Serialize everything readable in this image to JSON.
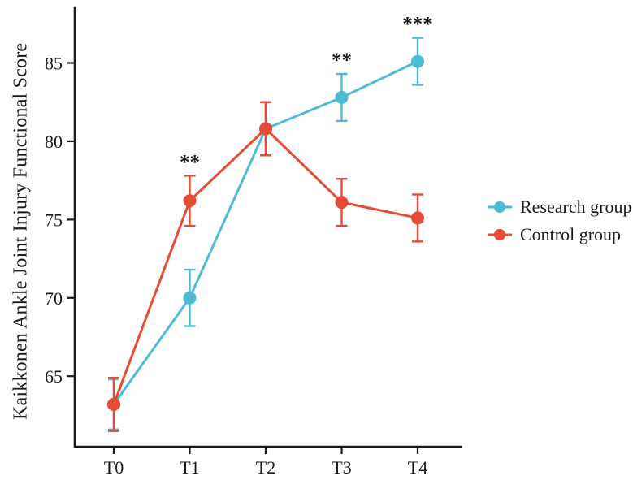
{
  "chart_data": {
    "type": "line",
    "categories": [
      "T0",
      "T1",
      "T2",
      "T3",
      "T4"
    ],
    "ylabel": "Kaikkonen Ankle Joint Injury Functional Score",
    "yticks": [
      65,
      70,
      75,
      80,
      85
    ],
    "ylim": [
      60.5,
      88.5
    ],
    "grid": false,
    "legend_position": "right",
    "axis_color": "#1a1a1a",
    "series": [
      {
        "name": "Research group",
        "color": "#4DBBD5",
        "values": [
          63.2,
          70.0,
          80.8,
          82.8,
          85.1
        ],
        "errors": [
          1.6,
          1.8,
          1.7,
          1.5,
          1.5
        ]
      },
      {
        "name": "Control group",
        "color": "#E64B35",
        "values": [
          63.2,
          76.2,
          80.8,
          76.1,
          75.1
        ],
        "errors": [
          1.7,
          1.6,
          1.7,
          1.5,
          1.5
        ]
      }
    ],
    "annotations": [
      {
        "category": "T1",
        "series": "Control group",
        "text": "**"
      },
      {
        "category": "T3",
        "series": "Research group",
        "text": "**"
      },
      {
        "category": "T4",
        "series": "Research group",
        "text": "***"
      }
    ]
  }
}
